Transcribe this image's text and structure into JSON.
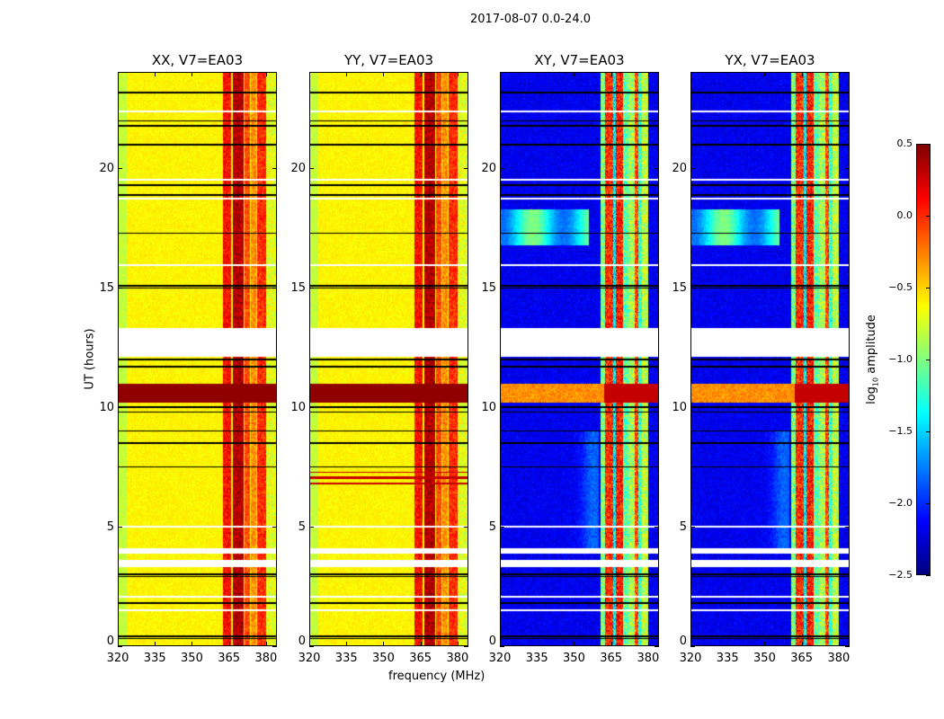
{
  "suptitle": "2017-08-07 0.0-24.0",
  "ylabel": "UT (hours)",
  "xlabel": "frequency (MHz)",
  "colorbar": {
    "label_prefix": "log",
    "label_sub": "10",
    "label_suffix": " amplitude",
    "range": [
      -2.5,
      0.5
    ],
    "ticks": [
      0.5,
      0.0,
      -0.5,
      -1.0,
      -1.5,
      -2.0,
      -2.5
    ],
    "tick_labels": [
      "0.5",
      "0.0",
      "−0.5",
      "−1.0",
      "−1.5",
      "−2.0",
      "−2.5"
    ],
    "colormap": "jet"
  },
  "chart_data": [
    {
      "type": "heatmap",
      "title": "XX, V7=EA03",
      "mode": "parallel",
      "xlim": [
        320,
        384.4
      ],
      "ylim": [
        0,
        24
      ],
      "xticks": [
        320,
        335,
        350,
        365,
        380
      ],
      "xtick_labels": [
        "320",
        "335",
        "350",
        "365",
        "380"
      ],
      "yticks": [
        0,
        5,
        10,
        15,
        20
      ],
      "ytick_labels": [
        "0",
        "5",
        "10",
        "15",
        "20"
      ]
    },
    {
      "type": "heatmap",
      "title": "YY, V7=EA03",
      "mode": "parallel",
      "xlim": [
        320,
        384.4
      ],
      "ylim": [
        0,
        24
      ],
      "xticks": [
        320,
        335,
        350,
        365,
        380
      ],
      "xtick_labels": [
        "320",
        "335",
        "350",
        "365",
        "380"
      ],
      "yticks": [
        0,
        5,
        10,
        15,
        20
      ],
      "ytick_labels": [
        "0",
        "5",
        "10",
        "15",
        "20"
      ]
    },
    {
      "type": "heatmap",
      "title": "XY, V7=EA03",
      "mode": "cross",
      "xlim": [
        320,
        384.4
      ],
      "ylim": [
        0,
        24
      ],
      "xticks": [
        320,
        335,
        350,
        365,
        380
      ],
      "xtick_labels": [
        "320",
        "335",
        "350",
        "365",
        "380"
      ],
      "yticks": [
        0,
        5,
        10,
        15,
        20
      ],
      "ytick_labels": [
        "0",
        "5",
        "10",
        "15",
        "20"
      ]
    },
    {
      "type": "heatmap",
      "title": "YX, V7=EA03",
      "mode": "cross",
      "xlim": [
        320,
        384.4
      ],
      "ylim": [
        0,
        24
      ],
      "xticks": [
        320,
        335,
        350,
        365,
        380
      ],
      "xtick_labels": [
        "320",
        "335",
        "350",
        "365",
        "380"
      ],
      "yticks": [
        0,
        5,
        10,
        15,
        20
      ],
      "ytick_labels": [
        "0",
        "5",
        "10",
        "15",
        "20"
      ]
    }
  ],
  "model": {
    "parallel_base": -0.6,
    "cross_base": -2.3,
    "rfi_channels_parallel": [
      [
        362.5,
        366,
        0.1
      ],
      [
        366.5,
        371,
        0.35
      ],
      [
        371.5,
        373.5,
        -0.1
      ],
      [
        374,
        376,
        -0.3
      ],
      [
        376.5,
        380,
        0.0
      ],
      [
        380,
        384.4,
        -0.7
      ]
    ],
    "rfi_channels_cross": [
      [
        360.5,
        362.5,
        -1.0
      ],
      [
        362.5,
        366,
        0.0
      ],
      [
        366,
        367,
        -1.4
      ],
      [
        367,
        370,
        0.05
      ],
      [
        370,
        372,
        -1.1
      ],
      [
        372,
        374.5,
        -0.9
      ],
      [
        374.5,
        376,
        -0.1
      ],
      [
        376,
        377.5,
        -1.2
      ],
      [
        377.5,
        380,
        -0.8
      ]
    ],
    "flagged_hours": [
      [
        12.1,
        13.3
      ],
      [
        3.3,
        3.6
      ],
      [
        3.85,
        4.1
      ],
      [
        4.95,
        5.02
      ],
      [
        1.45,
        1.52
      ],
      [
        2.0,
        2.08
      ],
      [
        22.35,
        22.42
      ],
      [
        18.7,
        18.78
      ],
      [
        19.5,
        19.58
      ],
      [
        15.9,
        15.98
      ]
    ],
    "black_line_hours": [
      23.2,
      22.0,
      21.8,
      21.0,
      19.3,
      18.9,
      17.3,
      15.1,
      15.0,
      12.0,
      11.7,
      10.0,
      9.8,
      9.0,
      8.5,
      7.5,
      3.0,
      2.9,
      1.8,
      0.3,
      0.4
    ],
    "strong_rfi_hours": [
      10.2,
      11.0
    ]
  }
}
